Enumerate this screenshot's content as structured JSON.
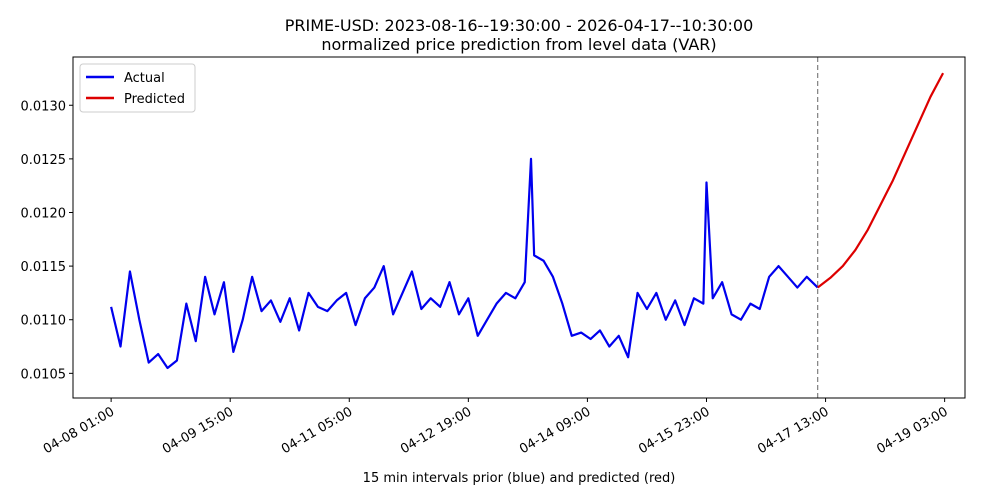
{
  "chart_data": {
    "type": "line",
    "title": "PRIME-USD: 2023-08-16--19:30:00 - 2026-04-17--10:30:00",
    "subtitle": "normalized price prediction from level data (VAR)",
    "xlabel": "15 min intervals prior (blue) and predicted (red)",
    "xlim": [
      "04-07 12:50",
      "04-19 09:30"
    ],
    "xticks": [
      "04-08 01:00",
      "04-09 15:00",
      "04-11 05:00",
      "04-12 19:00",
      "04-14 09:00",
      "04-15 23:00",
      "04-17 13:00",
      "04-19 03:00"
    ],
    "ylim": [
      0.01027,
      0.01345
    ],
    "yticks": [
      0.0105,
      {
        "value": 0.011,
        "label": "0.0110"
      },
      0.0115,
      {
        "value": 0.012,
        "label": "0.0120"
      },
      0.0125,
      {
        "value": 0.013,
        "label": "0.0130"
      }
    ],
    "vline": "04-17 10:30",
    "legend": "upper left",
    "series": [
      {
        "name": "Actual",
        "color": "#0000ee",
        "x": [
          "04-08 01:00",
          "04-08 04:00",
          "04-08 07:00",
          "04-08 10:00",
          "04-08 13:00",
          "04-08 16:00",
          "04-08 19:00",
          "04-08 22:00",
          "04-09 01:00",
          "04-09 04:00",
          "04-09 07:00",
          "04-09 10:00",
          "04-09 13:00",
          "04-09 16:00",
          "04-09 19:00",
          "04-09 22:00",
          "04-10 01:00",
          "04-10 04:00",
          "04-10 07:00",
          "04-10 10:00",
          "04-10 13:00",
          "04-10 16:00",
          "04-10 19:00",
          "04-10 22:00",
          "04-11 01:00",
          "04-11 04:00",
          "04-11 07:00",
          "04-11 10:00",
          "04-11 13:00",
          "04-11 16:00",
          "04-11 19:00",
          "04-11 22:00",
          "04-12 01:00",
          "04-12 04:00",
          "04-12 07:00",
          "04-12 10:00",
          "04-12 13:00",
          "04-12 16:00",
          "04-12 19:00",
          "04-12 22:00",
          "04-13 01:00",
          "04-13 04:00",
          "04-13 07:00",
          "04-13 10:00",
          "04-13 13:00",
          "04-13 15:00",
          "04-13 16:00",
          "04-13 19:00",
          "04-13 22:00",
          "04-14 01:00",
          "04-14 04:00",
          "04-14 07:00",
          "04-14 10:00",
          "04-14 13:00",
          "04-14 16:00",
          "04-14 19:00",
          "04-14 22:00",
          "04-15 01:00",
          "04-15 04:00",
          "04-15 07:00",
          "04-15 10:00",
          "04-15 13:00",
          "04-15 16:00",
          "04-15 19:00",
          "04-15 22:00",
          "04-15 23:00",
          "04-16 01:00",
          "04-16 04:00",
          "04-16 07:00",
          "04-16 10:00",
          "04-16 13:00",
          "04-16 16:00",
          "04-16 19:00",
          "04-16 22:00",
          "04-17 01:00",
          "04-17 04:00",
          "04-17 07:00",
          "04-17 10:30"
        ],
        "values": [
          0.01112,
          0.01075,
          0.01145,
          0.011,
          0.0106,
          0.01068,
          0.01055,
          0.01062,
          0.01115,
          0.0108,
          0.0114,
          0.01105,
          0.01135,
          0.0107,
          0.011,
          0.0114,
          0.01108,
          0.01118,
          0.01098,
          0.0112,
          0.0109,
          0.01125,
          0.01112,
          0.01108,
          0.01118,
          0.01125,
          0.01095,
          0.0112,
          0.0113,
          0.0115,
          0.01105,
          0.01125,
          0.01145,
          0.0111,
          0.0112,
          0.01112,
          0.01135,
          0.01105,
          0.0112,
          0.01085,
          0.011,
          0.01115,
          0.01125,
          0.0112,
          0.01135,
          0.0125,
          0.0116,
          0.01155,
          0.0114,
          0.01115,
          0.01085,
          0.01088,
          0.01082,
          0.0109,
          0.01075,
          0.01085,
          0.01065,
          0.01125,
          0.0111,
          0.01125,
          0.011,
          0.01118,
          0.01095,
          0.0112,
          0.01115,
          0.01228,
          0.0112,
          0.01135,
          0.01105,
          0.011,
          0.01115,
          0.0111,
          0.0114,
          0.0115,
          0.0114,
          0.0113,
          0.0114,
          0.0113
        ]
      },
      {
        "name": "Predicted",
        "color": "#dd0000",
        "x": [
          "04-17 10:30",
          "04-17 14:30",
          "04-17 18:30",
          "04-17 22:30",
          "04-18 02:30",
          "04-18 06:30",
          "04-18 10:30",
          "04-18 14:30",
          "04-18 18:30",
          "04-18 22:30",
          "04-19 02:30"
        ],
        "values": [
          0.0113,
          0.01139,
          0.0115,
          0.01165,
          0.01184,
          0.01207,
          0.0123,
          0.01256,
          0.01282,
          0.01308,
          0.0133
        ]
      }
    ]
  }
}
